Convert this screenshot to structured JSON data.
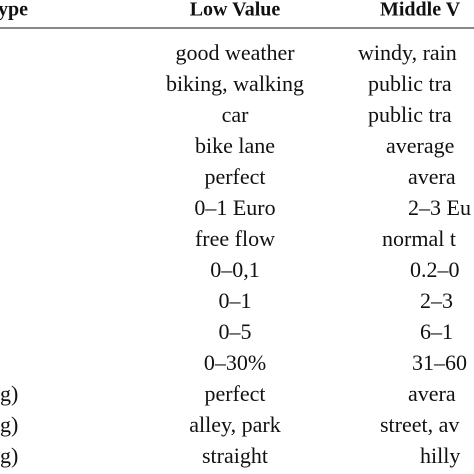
{
  "table": {
    "header": [
      "ype",
      "Low Value",
      "Middle V"
    ],
    "rows": [
      [
        null,
        "good weather",
        "windy, rain"
      ],
      [
        null,
        "biking, walking",
        "public tra"
      ],
      [
        null,
        "car",
        "public tra"
      ],
      [
        null,
        "bike lane",
        "average"
      ],
      [
        null,
        "perfect",
        "avera"
      ],
      [
        null,
        "0–1 Euro",
        "2–3 Eu"
      ],
      [
        null,
        "free flow",
        "normal t"
      ],
      [
        null,
        "0–0,1",
        "0.2–0"
      ],
      [
        null,
        "0–1",
        "2–3"
      ],
      [
        null,
        "0–5",
        "6–1"
      ],
      [
        null,
        "0–30%",
        "31–60"
      ],
      [
        "g)",
        "perfect",
        "avera"
      ],
      [
        "g)",
        "alley, park",
        "street, av"
      ],
      [
        "g)",
        "straight",
        "hilly"
      ]
    ]
  }
}
